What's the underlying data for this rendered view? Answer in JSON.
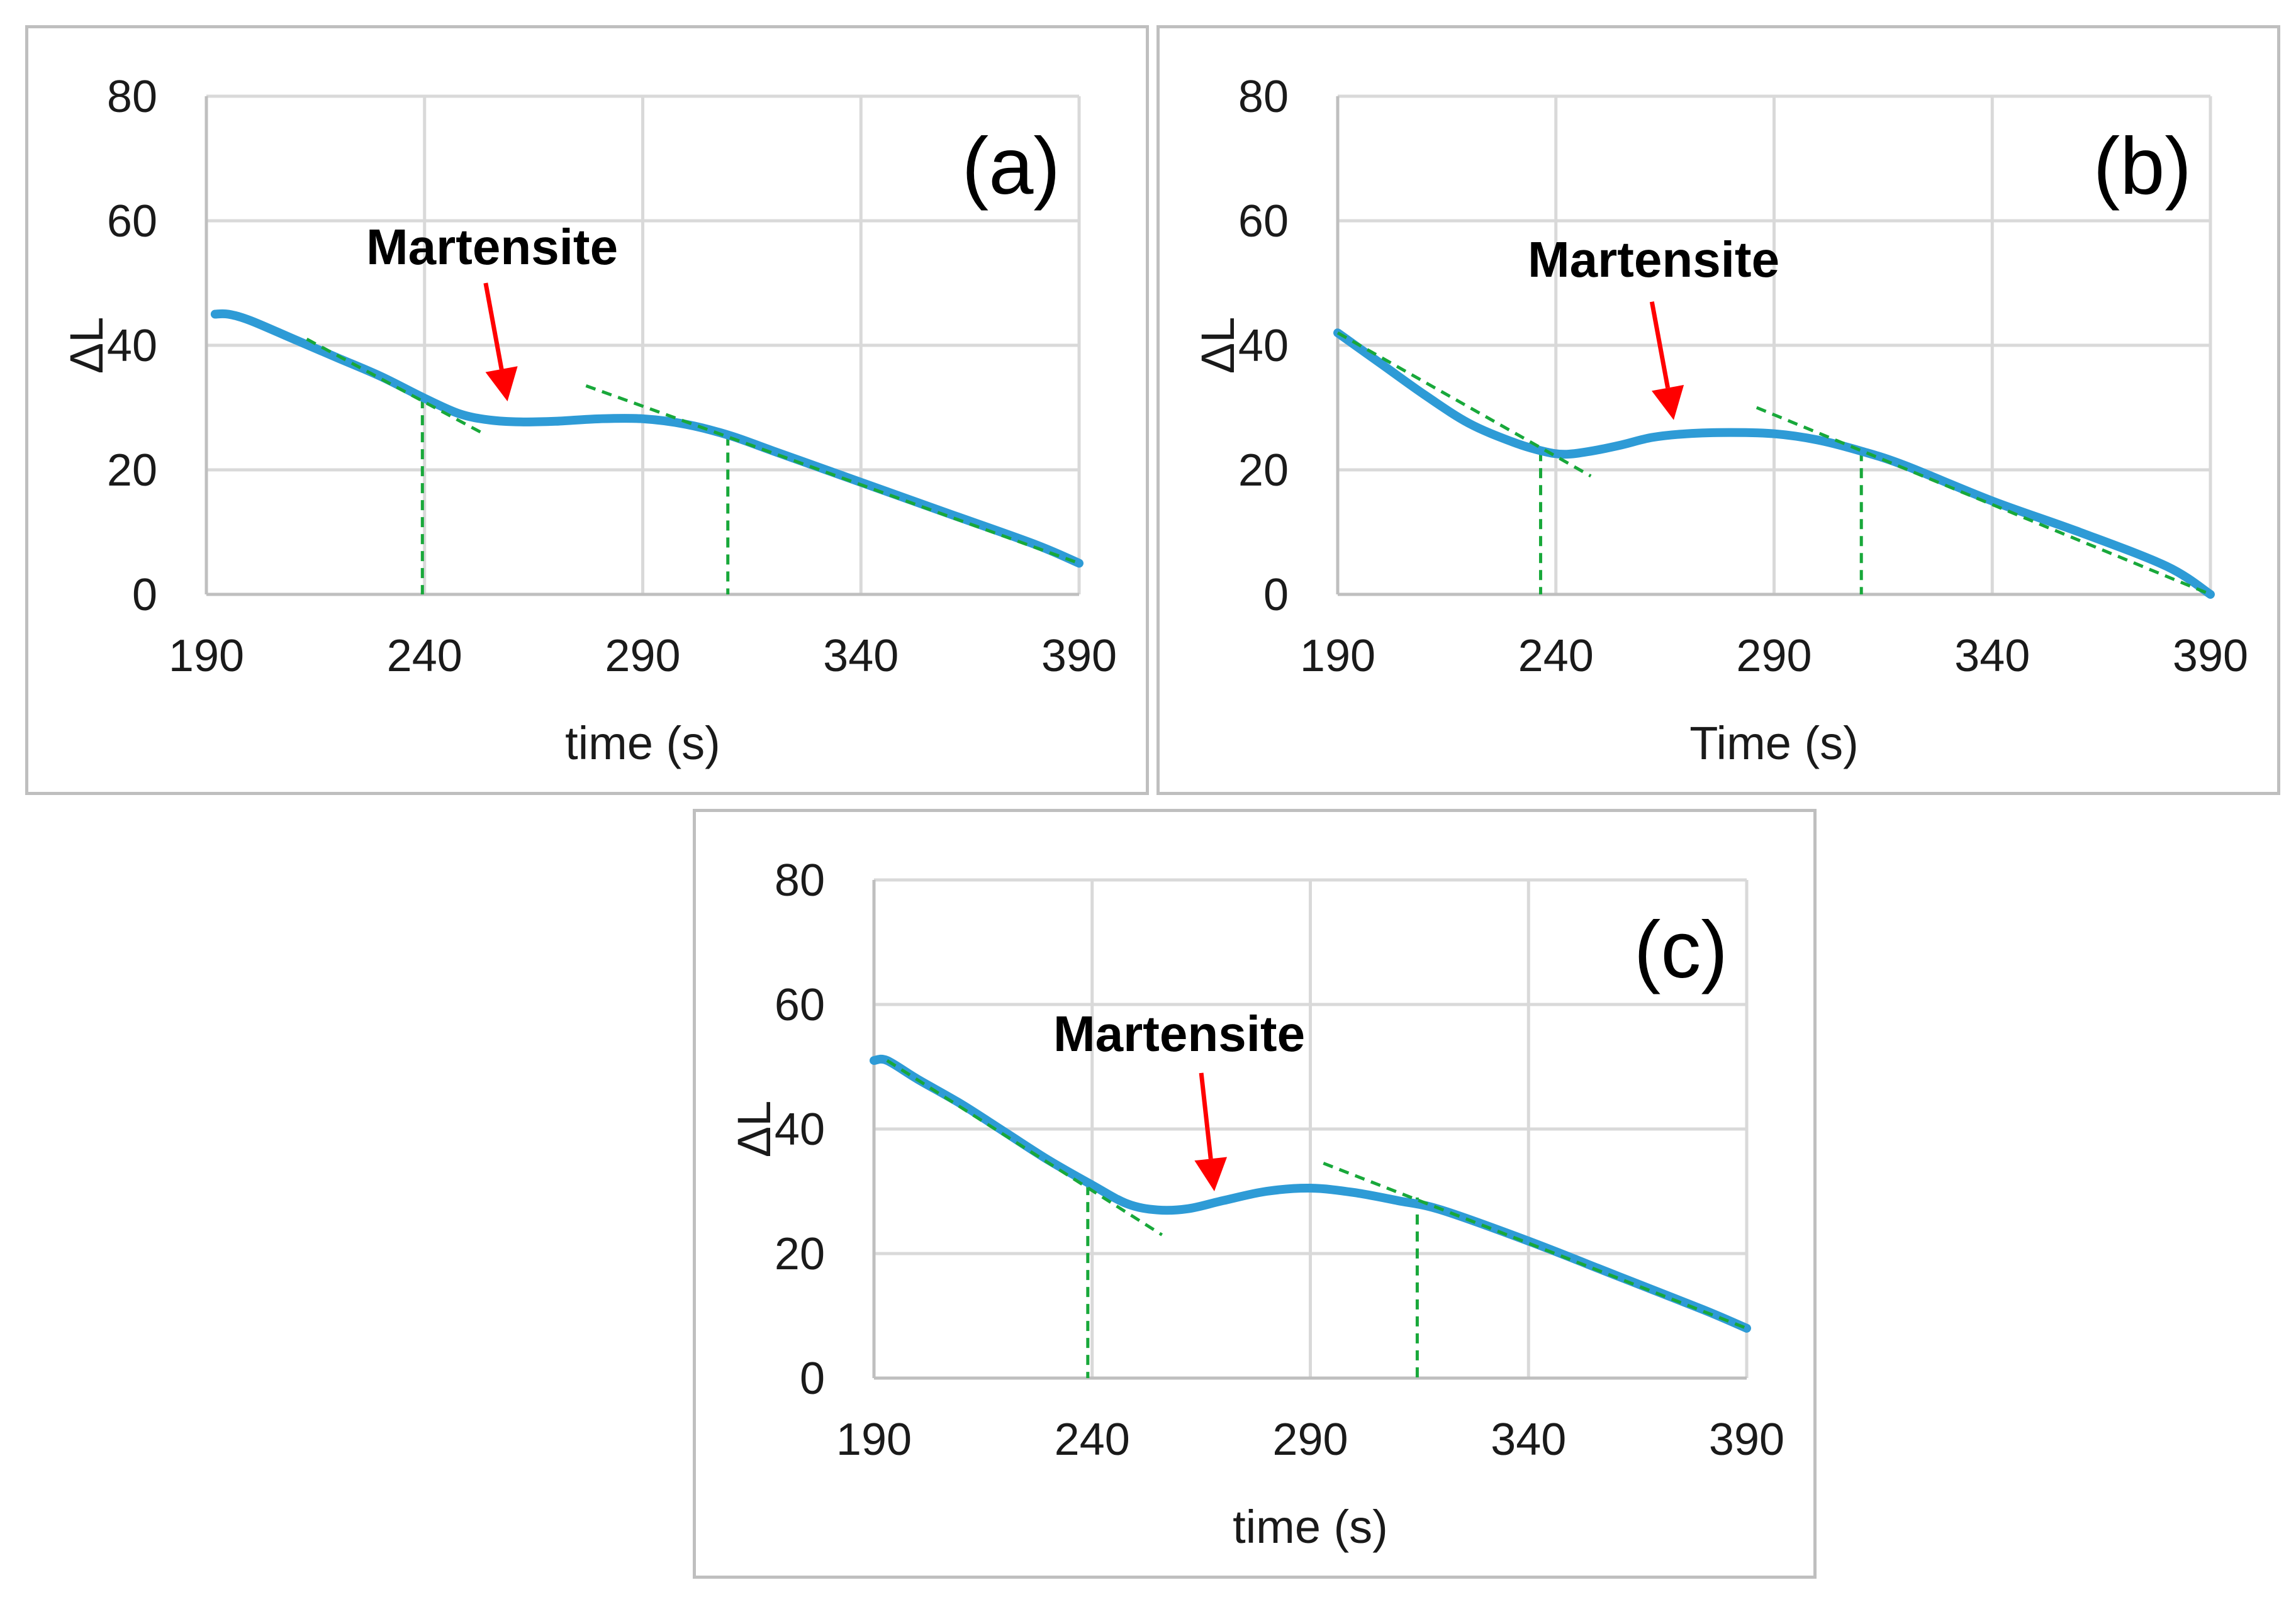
{
  "colors": {
    "series": "#2e9bd6",
    "guide": "#18a83a",
    "arrow": "#ff0000"
  },
  "chart_data": [
    {
      "type": "line",
      "panel_label": "(a)",
      "annotation": "Martensite",
      "xlabel": "time (s)",
      "ylabel": "ΔL",
      "xlim": [
        190,
        390
      ],
      "ylim": [
        0,
        80
      ],
      "xticks": [
        "190",
        "240",
        "290",
        "340",
        "390"
      ],
      "yticks": [
        "0",
        "20",
        "40",
        "60",
        "80"
      ],
      "series": [
        {
          "name": "ΔL",
          "x": [
            192,
            195,
            200,
            210,
            220,
            230,
            240,
            248,
            255,
            262,
            270,
            280,
            290,
            300,
            310,
            320,
            340,
            360,
            380,
            390
          ],
          "y": [
            45,
            45,
            44,
            41,
            38,
            35,
            31.5,
            29,
            28,
            27.7,
            27.8,
            28.2,
            28.2,
            27.3,
            25.5,
            23,
            18,
            13,
            8,
            5
          ]
        }
      ],
      "tangents": [
        {
          "x": [
            213,
            253
          ],
          "y": [
            41,
            26
          ]
        },
        {
          "x": [
            277,
            390
          ],
          "y": [
            33.5,
            5
          ]
        }
      ],
      "onsets": [
        {
          "x": 239.5,
          "y_top": 31.5
        },
        {
          "x": 309.5,
          "y_top": 25.5
        }
      ],
      "arrow": {
        "from": [
          254,
          50
        ],
        "to": [
          259,
          31
        ]
      }
    },
    {
      "type": "line",
      "panel_label": "(b)",
      "annotation": "Martensite",
      "xlabel": "Time (s)",
      "ylabel": "ΔL",
      "xlim": [
        190,
        390
      ],
      "ylim": [
        0,
        80
      ],
      "xticks": [
        "190",
        "240",
        "290",
        "340",
        "390"
      ],
      "yticks": [
        "0",
        "20",
        "40",
        "60",
        "80"
      ],
      "series": [
        {
          "name": "ΔL",
          "x": [
            190,
            200,
            210,
            220,
            230,
            237,
            242,
            248,
            255,
            262,
            270,
            280,
            290,
            300,
            310,
            320,
            340,
            360,
            380,
            390
          ],
          "y": [
            42,
            37,
            32,
            27.5,
            24.5,
            23,
            22.5,
            23,
            24,
            25.2,
            25.8,
            26,
            25.8,
            24.8,
            23,
            20.7,
            15,
            10,
            4.5,
            0
          ]
        }
      ],
      "tangents": [
        {
          "x": [
            190,
            248
          ],
          "y": [
            42,
            19
          ]
        },
        {
          "x": [
            286,
            390
          ],
          "y": [
            30,
            0
          ]
        }
      ],
      "onsets": [
        {
          "x": 236.5,
          "y_top": 23
        },
        {
          "x": 310,
          "y_top": 23
        }
      ],
      "arrow": {
        "from": [
          262,
          47
        ],
        "to": [
          267,
          28
        ]
      }
    },
    {
      "type": "line",
      "panel_label": "(c)",
      "annotation": "Martensite",
      "xlabel": "time (s)",
      "ylabel": "ΔL",
      "xlim": [
        190,
        390
      ],
      "ylim": [
        0,
        80
      ],
      "xticks": [
        "190",
        "240",
        "290",
        "340",
        "390"
      ],
      "yticks": [
        "0",
        "20",
        "40",
        "60",
        "80"
      ],
      "series": [
        {
          "name": "ΔL",
          "x": [
            190,
            193,
            200,
            210,
            220,
            230,
            240,
            248,
            255,
            262,
            270,
            280,
            290,
            300,
            310,
            320,
            340,
            360,
            380,
            390
          ],
          "y": [
            51,
            51,
            48,
            44,
            39.5,
            35,
            31,
            28,
            27,
            27.2,
            28.5,
            30,
            30.5,
            29.8,
            28.5,
            27,
            22,
            16.5,
            11,
            8
          ]
        }
      ],
      "tangents": [
        {
          "x": [
            193,
            256
          ],
          "y": [
            51,
            23
          ]
        },
        {
          "x": [
            293,
            390
          ],
          "y": [
            34.5,
            8
          ]
        }
      ],
      "onsets": [
        {
          "x": 239,
          "y_top": 31
        },
        {
          "x": 314.5,
          "y_top": 29
        }
      ],
      "arrow": {
        "from": [
          265,
          49
        ],
        "to": [
          268,
          30
        ]
      }
    }
  ]
}
